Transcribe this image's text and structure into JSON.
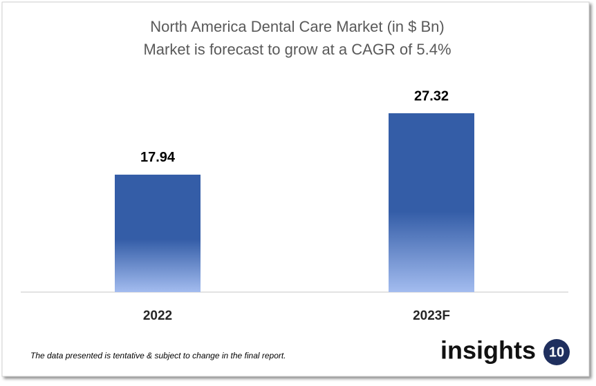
{
  "chart_data": {
    "type": "bar",
    "title": "North America Dental Care Market (in $ Bn)",
    "subtitle": "Market is forecast to grow at a CAGR of 5.4%",
    "categories": [
      "2022",
      "2023F"
    ],
    "values": [
      17.94,
      27.32
    ],
    "color": "#345da7",
    "ylim": [
      0,
      30
    ]
  },
  "footnote": "The data presented is tentative & subject to change in the final report.",
  "logo": {
    "text": "insights",
    "badge": "10"
  }
}
